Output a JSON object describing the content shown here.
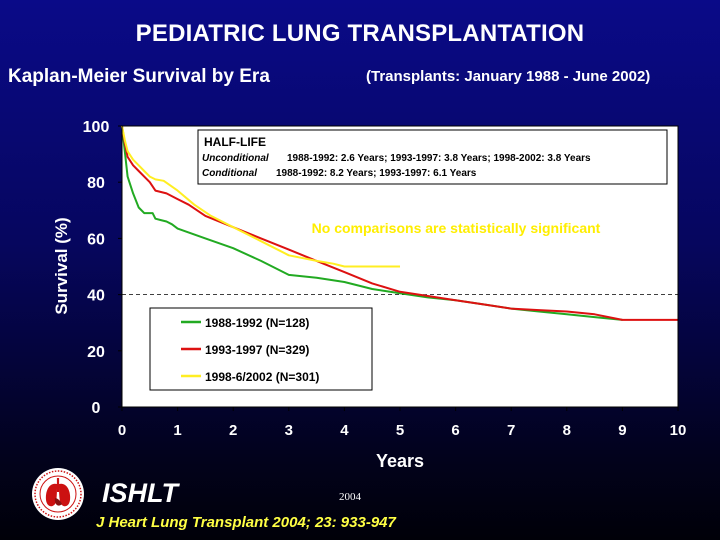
{
  "title": "PEDIATRIC LUNG TRANSPLANTATION",
  "subtitle": "Kaplan-Meier Survival by Era",
  "subtitle2": "(Transplants: January 1988 - June 2002)",
  "org": "ISHLT",
  "year": "2004",
  "citation": "J Heart Lung Transplant 2004; 23: 933-947",
  "half_life": {
    "heading": "HALF-LIFE",
    "unconditional_label": "Unconditional",
    "unconditional_text": "1988-1992: 2.6 Years; 1993-1997: 3.8 Years; 1998-2002: 3.8 Years",
    "conditional_label": "Conditional",
    "conditional_text": "1988-1992: 8.2 Years; 1993-1997: 6.1 Years"
  },
  "annotation": "No comparisons are statistically significant",
  "colors": {
    "plot_bg": "#ffffff",
    "series_1988": "#22aa22",
    "series_1993": "#dd1111",
    "series_1998": "#ffee22",
    "annotation": "#ffee00"
  },
  "chart_data": {
    "type": "line",
    "xlabel": "Years",
    "ylabel": "Survival (%)",
    "xlim": [
      0,
      10
    ],
    "ylim": [
      0,
      100
    ],
    "xticks": [
      0,
      1,
      2,
      3,
      4,
      5,
      6,
      7,
      8,
      9,
      10
    ],
    "yticks": [
      0,
      20,
      40,
      60,
      80,
      100
    ],
    "reference_line_y": 40,
    "legend_position": "lower-left",
    "series": [
      {
        "name": "1988-1992 (N=128)",
        "color": "#22aa22",
        "x": [
          0,
          0.05,
          0.1,
          0.2,
          0.3,
          0.4,
          0.55,
          0.6,
          0.7,
          0.8,
          0.9,
          1.0,
          1.5,
          2.0,
          2.5,
          3.0,
          3.5,
          4.0,
          4.5,
          5.0,
          5.5,
          6.0,
          6.5,
          7.0,
          7.5,
          8.0,
          8.5,
          9.0
        ],
        "y": [
          100,
          91,
          82,
          76,
          71,
          69,
          69,
          67,
          66.5,
          66,
          65,
          63.5,
          60,
          56.5,
          52,
          47,
          46,
          44.5,
          42,
          40.5,
          39,
          38,
          36.5,
          35,
          34,
          33,
          32,
          31
        ]
      },
      {
        "name": "1993-1997 (N=329)",
        "color": "#dd1111",
        "x": [
          0,
          0.05,
          0.1,
          0.2,
          0.3,
          0.4,
          0.5,
          0.6,
          0.8,
          1.0,
          1.2,
          1.5,
          2.0,
          2.5,
          3.0,
          3.5,
          4.0,
          4.5,
          5.0,
          5.5,
          6.0,
          6.5,
          7.0,
          7.5,
          8.0,
          8.5,
          9.0,
          9.5,
          10.0
        ],
        "y": [
          100,
          94,
          89,
          86,
          84,
          82,
          80,
          77,
          76,
          74,
          72,
          68,
          64,
          60,
          56,
          52,
          48,
          44,
          41,
          39.5,
          38,
          36.5,
          35,
          34.5,
          34,
          33,
          31,
          31,
          31
        ]
      },
      {
        "name": "1998-6/2002 (N=301)",
        "color": "#ffee22",
        "x": [
          0,
          0.05,
          0.1,
          0.2,
          0.3,
          0.4,
          0.5,
          0.6,
          0.75,
          1.0,
          1.3,
          1.6,
          2.0,
          2.5,
          3.0,
          3.5,
          3.8,
          4.0,
          4.5,
          5.0
        ],
        "y": [
          100,
          95,
          91,
          88,
          86,
          84,
          82,
          81,
          80.5,
          77,
          72,
          68,
          64,
          59,
          54,
          52,
          51,
          50,
          50,
          50
        ]
      }
    ]
  }
}
